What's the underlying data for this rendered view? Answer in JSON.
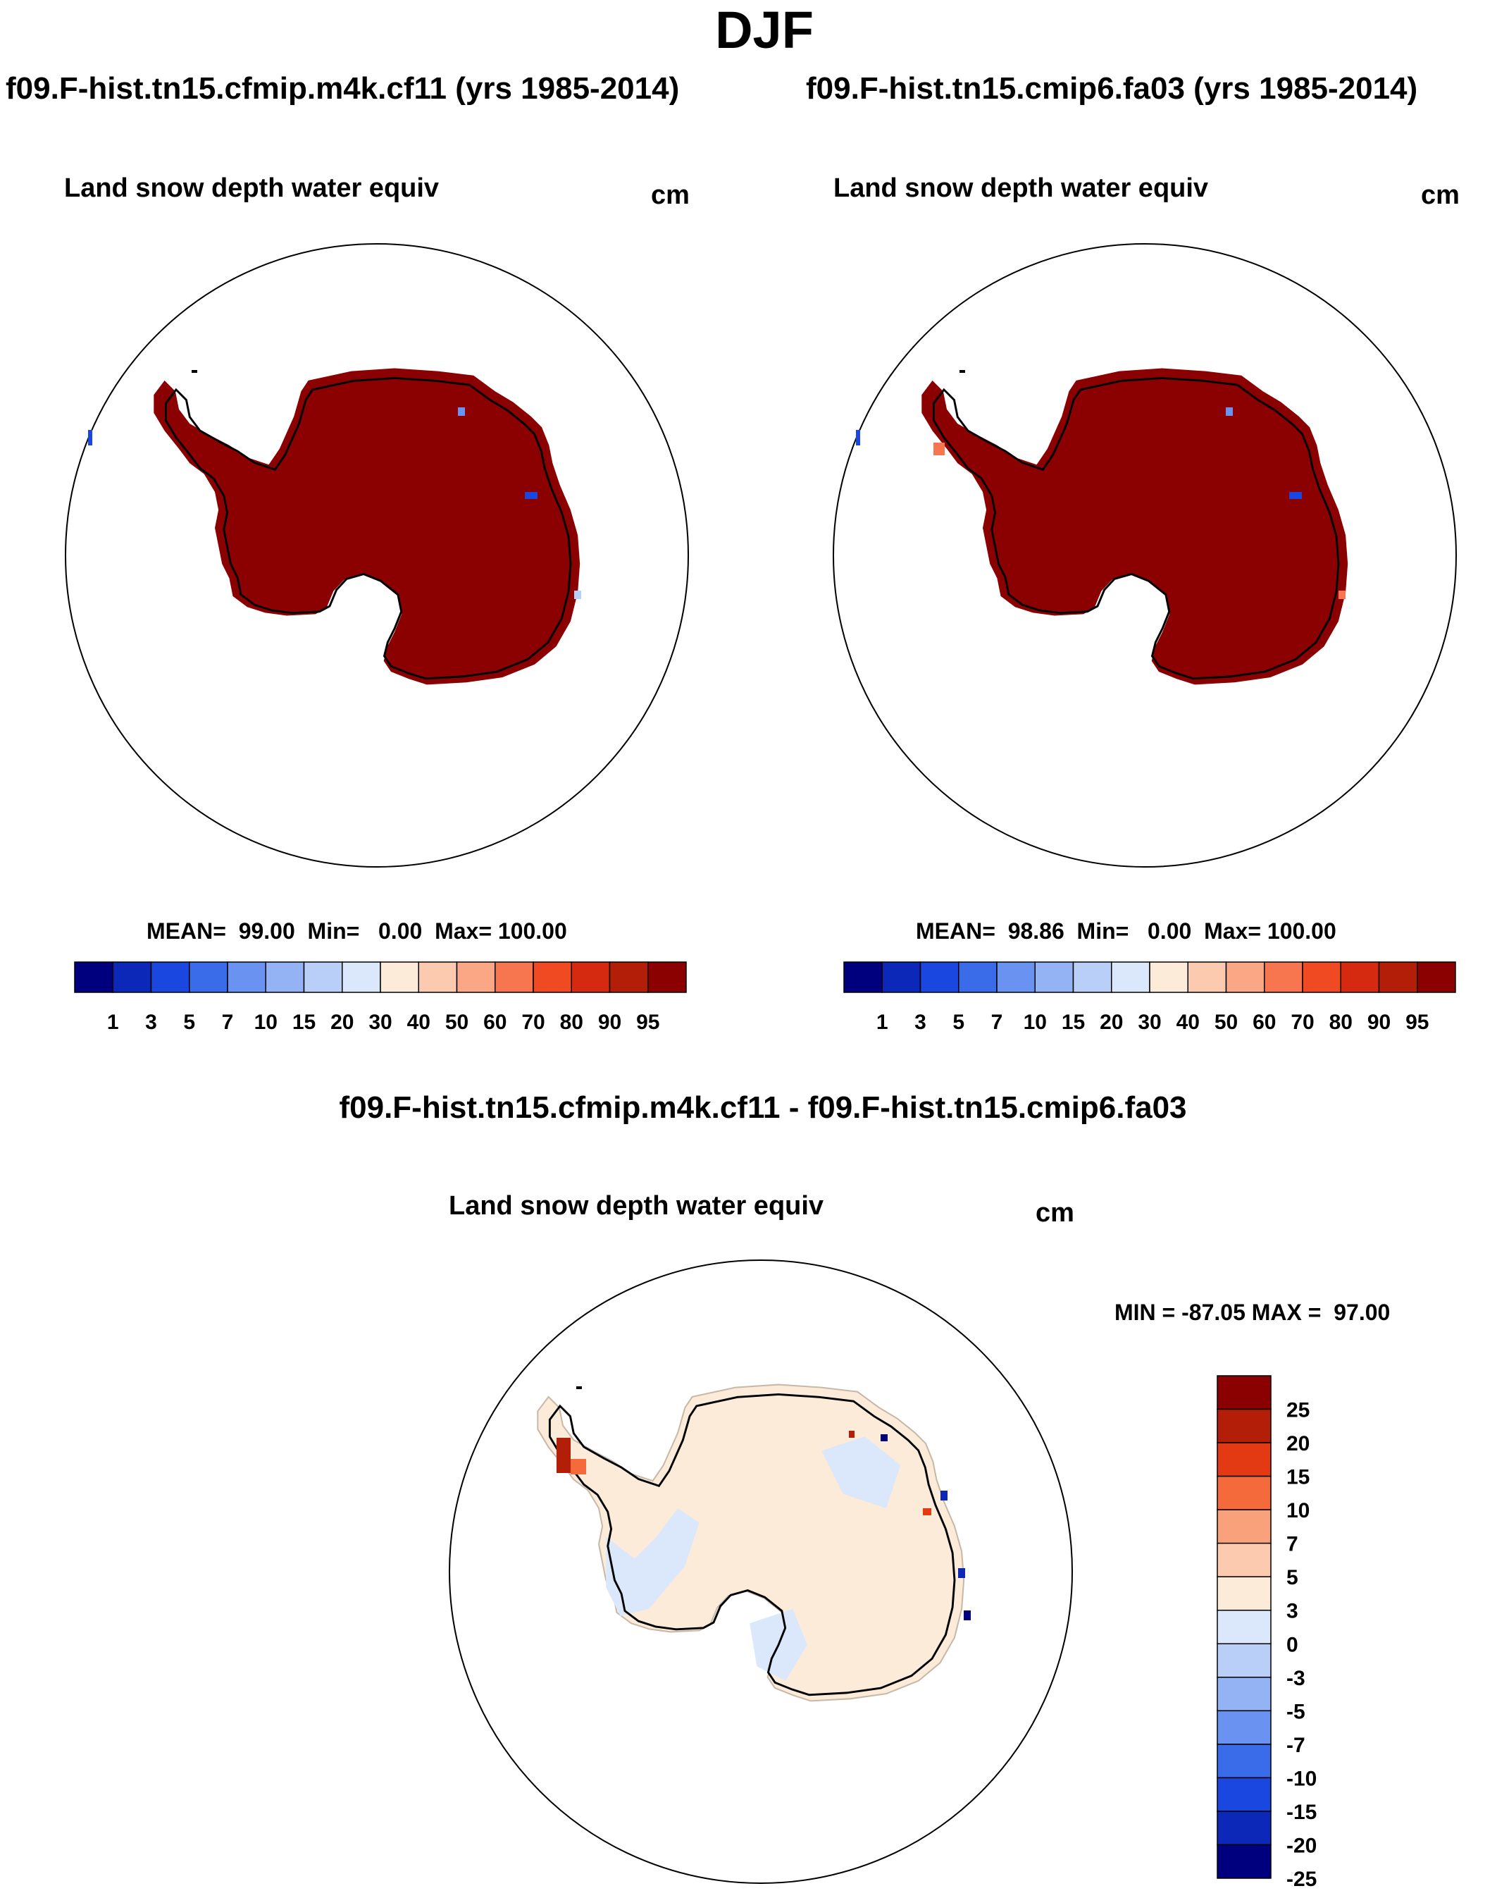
{
  "page": {
    "season_title": "DJF",
    "ncl_logo_text": ""
  },
  "panels": {
    "left": {
      "case_title": "f09.F-hist.tn15.cfmip.m4k.cf11 (yrs 1985-2014)",
      "variable": "Land snow depth water equiv",
      "units": "cm",
      "stats": "MEAN=  99.00  Min=   0.00  Max= 100.00"
    },
    "right": {
      "case_title": "f09.F-hist.tn15.cmip6.fa03 (yrs 1985-2014)",
      "variable": "Land snow depth water equiv",
      "units": "cm",
      "stats": "MEAN=  98.86  Min=   0.00  Max= 100.00"
    },
    "diff": {
      "case_title": "f09.F-hist.tn15.cfmip.m4k.cf11 - f09.F-hist.tn15.cmip6.fa03",
      "variable": "Land snow depth water equiv",
      "units": "cm",
      "stats": "MIN = -87.05 MAX =  97.00"
    }
  },
  "colorbar_abs": {
    "labels": [
      "1",
      "3",
      "5",
      "7",
      "10",
      "15",
      "20",
      "30",
      "40",
      "50",
      "60",
      "70",
      "80",
      "90",
      "95"
    ],
    "colors": [
      "#00007f",
      "#0b28b8",
      "#1a47e0",
      "#3a6be8",
      "#6a92f0",
      "#93b3f4",
      "#b9cff8",
      "#dbe8fb",
      "#fdebd9",
      "#fccaaf",
      "#fba684",
      "#f7754f",
      "#f04a23",
      "#d62a10",
      "#b31e08",
      "#8b0000"
    ]
  },
  "colorbar_diff": {
    "labels": [
      "25",
      "20",
      "15",
      "10",
      "7",
      "5",
      "3",
      "0",
      "-3",
      "-5",
      "-7",
      "-10",
      "-15",
      "-20",
      "-25"
    ],
    "colors": [
      "#8b0000",
      "#b31e08",
      "#e33a14",
      "#f46a3a",
      "#f9a17b",
      "#fccaaf",
      "#fdebd9",
      "#dbe8fb",
      "#b9cff8",
      "#93b3f4",
      "#6a92f0",
      "#3a6be8",
      "#1a47e0",
      "#0b28b8",
      "#00007f"
    ]
  },
  "map_colors": {
    "abs_fill": "#8b0000",
    "diff_pos": "#fdebd9",
    "diff_neg": "#dbe8fb",
    "coast": "#000000"
  }
}
